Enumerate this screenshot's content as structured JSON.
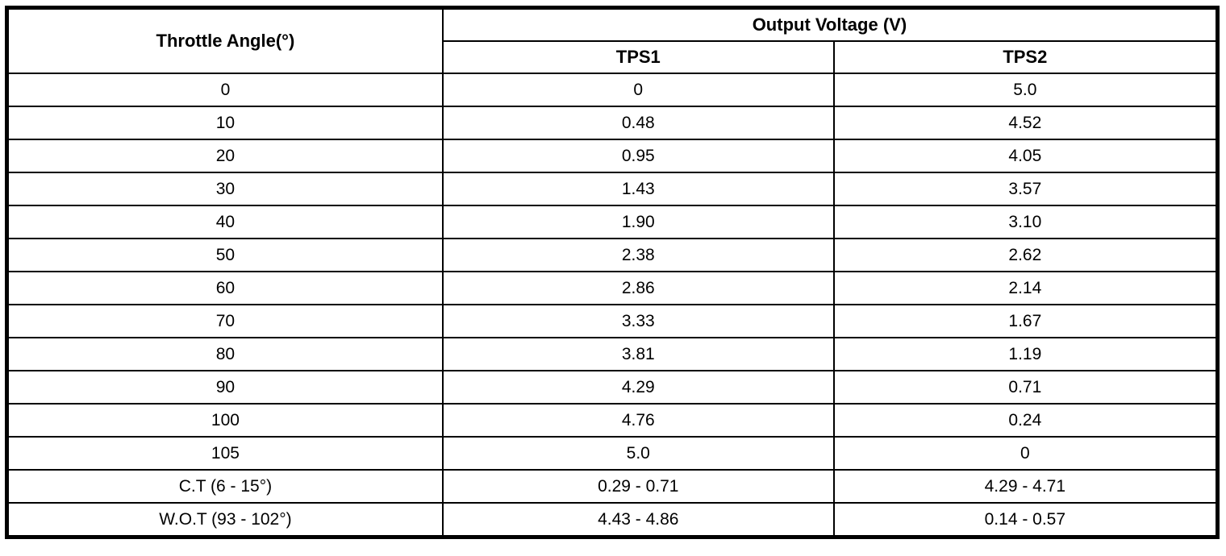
{
  "table": {
    "angle_header": "Throttle Angle(°)",
    "group_header": "Output Voltage (V)",
    "sub_headers": [
      "TPS1",
      "TPS2"
    ],
    "rows": [
      [
        "0",
        "0",
        "5.0"
      ],
      [
        "10",
        "0.48",
        "4.52"
      ],
      [
        "20",
        "0.95",
        "4.05"
      ],
      [
        "30",
        "1.43",
        "3.57"
      ],
      [
        "40",
        "1.90",
        "3.10"
      ],
      [
        "50",
        "2.38",
        "2.62"
      ],
      [
        "60",
        "2.86",
        "2.14"
      ],
      [
        "70",
        "3.33",
        "1.67"
      ],
      [
        "80",
        "3.81",
        "1.19"
      ],
      [
        "90",
        "4.29",
        "0.71"
      ],
      [
        "100",
        "4.76",
        "0.24"
      ],
      [
        "105",
        "5.0",
        "0"
      ],
      [
        "C.T (6 - 15°)",
        "0.29 - 0.71",
        "4.29 - 4.71"
      ],
      [
        "W.O.T (93 - 102°)",
        "4.43 - 4.86",
        "0.14 - 0.57"
      ]
    ]
  },
  "colors": {
    "border": "#000000",
    "text": "#000000",
    "background": "#ffffff"
  },
  "chart_data": {
    "type": "table",
    "title": "",
    "column_groups": [
      {
        "label": "Throttle Angle(°)",
        "span": 1
      },
      {
        "label": "Output Voltage (V)",
        "span": 2
      }
    ],
    "columns": [
      "Throttle Angle(°)",
      "TPS1",
      "TPS2"
    ],
    "rows": [
      [
        "0",
        "0",
        "5.0"
      ],
      [
        "10",
        "0.48",
        "4.52"
      ],
      [
        "20",
        "0.95",
        "4.05"
      ],
      [
        "30",
        "1.43",
        "3.57"
      ],
      [
        "40",
        "1.90",
        "3.10"
      ],
      [
        "50",
        "2.38",
        "2.62"
      ],
      [
        "60",
        "2.86",
        "2.14"
      ],
      [
        "70",
        "3.33",
        "1.67"
      ],
      [
        "80",
        "3.81",
        "1.19"
      ],
      [
        "90",
        "4.29",
        "0.71"
      ],
      [
        "100",
        "4.76",
        "0.24"
      ],
      [
        "105",
        "5.0",
        "0"
      ],
      [
        "C.T (6 - 15°)",
        "0.29 - 0.71",
        "4.29 - 4.71"
      ],
      [
        "W.O.T (93 - 102°)",
        "4.43 - 4.86",
        "0.14 - 0.57"
      ]
    ]
  }
}
